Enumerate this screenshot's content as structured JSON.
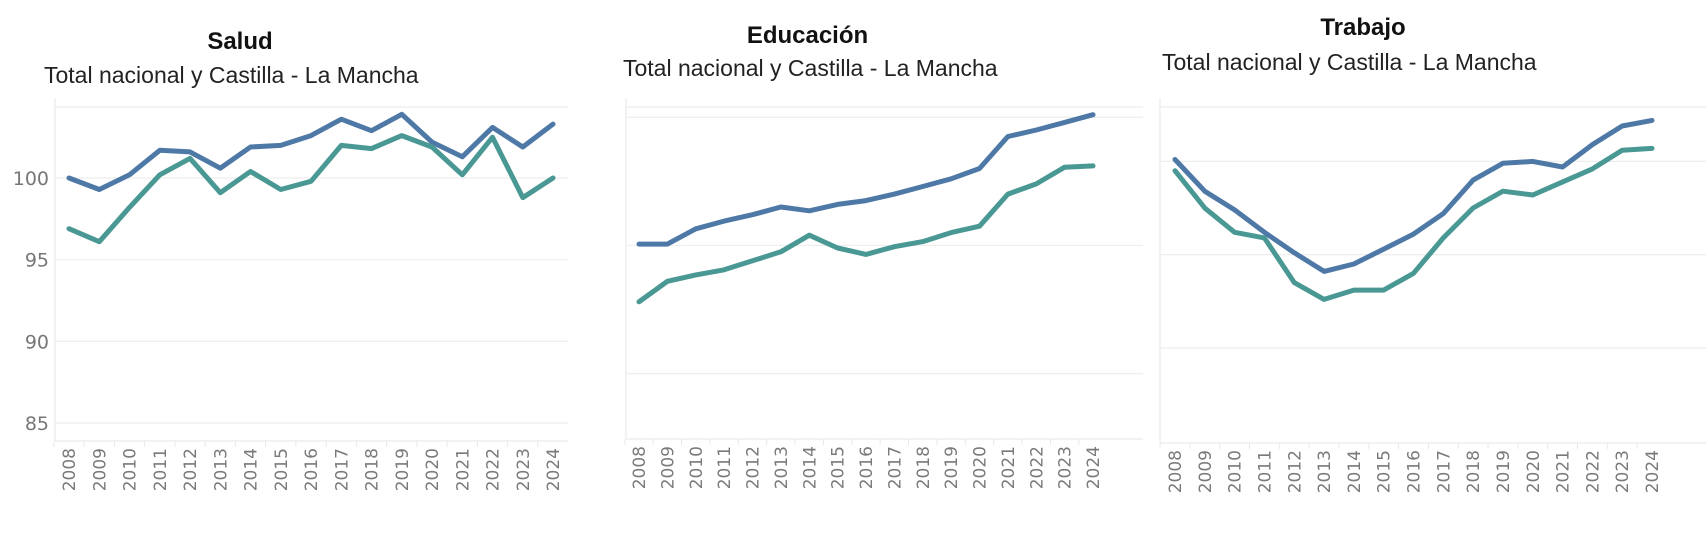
{
  "colors": {
    "nacional": "#4e79a7",
    "clm": "#499894"
  },
  "chart_data": [
    {
      "type": "line",
      "title": "Salud",
      "subtitle": "Total nacional y Castilla - La Mancha",
      "xlabel": "",
      "ylabel": "",
      "x": [
        "2008",
        "2009",
        "2010",
        "2011",
        "2012",
        "2013",
        "2014",
        "2015",
        "2016",
        "2017",
        "2018",
        "2019",
        "2020",
        "2021",
        "2022",
        "2023",
        "2024"
      ],
      "yticks": [
        100,
        95,
        90,
        85
      ],
      "ytick_labels": [
        "100",
        "95",
        "90",
        "85"
      ],
      "grid": true,
      "ylim": [
        83.9,
        104.9
      ],
      "series": [
        {
          "name": "Total nacional",
          "values": [
            100.0,
            99.3,
            100.2,
            101.7,
            101.6,
            100.6,
            101.9,
            102.0,
            102.6,
            103.6,
            102.9,
            103.9,
            102.2,
            101.3,
            103.1,
            101.9,
            103.3
          ]
        },
        {
          "name": "Castilla - La Mancha",
          "values": [
            96.9,
            96.1,
            98.2,
            100.2,
            101.2,
            99.1,
            100.4,
            99.3,
            99.8,
            102.0,
            101.8,
            102.6,
            101.9,
            100.2,
            102.5,
            98.8,
            100.0
          ]
        }
      ]
    },
    {
      "type": "line",
      "title": "Educación",
      "subtitle": "Total nacional y Castilla - La Mancha",
      "xlabel": "",
      "ylabel": "",
      "x": [
        "2008",
        "2009",
        "2010",
        "2011",
        "2012",
        "2013",
        "2014",
        "2015",
        "2016",
        "2017",
        "2018",
        "2019",
        "2020",
        "2021",
        "2022",
        "2023",
        "2024"
      ],
      "yticks": [
        110,
        100,
        90
      ],
      "ytick_labels": [],
      "grid": true,
      "ylim": [
        84.9,
        111.5
      ],
      "series": [
        {
          "name": "Total nacional",
          "values": [
            100.1,
            100.1,
            101.3,
            101.9,
            102.4,
            103.0,
            102.7,
            103.2,
            103.5,
            104.0,
            104.6,
            105.2,
            106.0,
            108.5,
            109.0,
            109.6,
            110.2
          ]
        },
        {
          "name": "Castilla - La Mancha",
          "values": [
            95.6,
            97.2,
            97.7,
            98.1,
            98.8,
            99.5,
            100.8,
            99.8,
            99.3,
            99.9,
            100.3,
            101.0,
            101.5,
            104.0,
            104.8,
            106.1,
            106.2
          ]
        }
      ]
    },
    {
      "type": "line",
      "title": "Trabajo",
      "subtitle": "Total nacional y Castilla - La Mancha",
      "xlabel": "",
      "ylabel": "",
      "x": [
        "2008",
        "2009",
        "2010",
        "2011",
        "2012",
        "2013",
        "2014",
        "2015",
        "2016",
        "2017",
        "2018",
        "2019",
        "2020",
        "2021",
        "2022",
        "2023",
        "2024"
      ],
      "yticks": [
        100,
        95,
        90,
        85
      ],
      "ytick_labels": [],
      "grid": true,
      "ylim": [
        84.9,
        103.4
      ],
      "series": [
        {
          "name": "Total nacional",
          "values": [
            100.1,
            98.4,
            97.4,
            96.2,
            95.1,
            94.1,
            94.5,
            95.3,
            96.1,
            97.2,
            99.0,
            99.9,
            100.0,
            99.7,
            100.9,
            101.9,
            102.2
          ]
        },
        {
          "name": "Castilla - La Mancha",
          "values": [
            99.5,
            97.5,
            96.2,
            95.9,
            93.5,
            92.6,
            93.1,
            93.1,
            94.0,
            95.9,
            97.5,
            98.4,
            98.2,
            98.9,
            99.6,
            100.6,
            100.7
          ]
        }
      ]
    }
  ]
}
